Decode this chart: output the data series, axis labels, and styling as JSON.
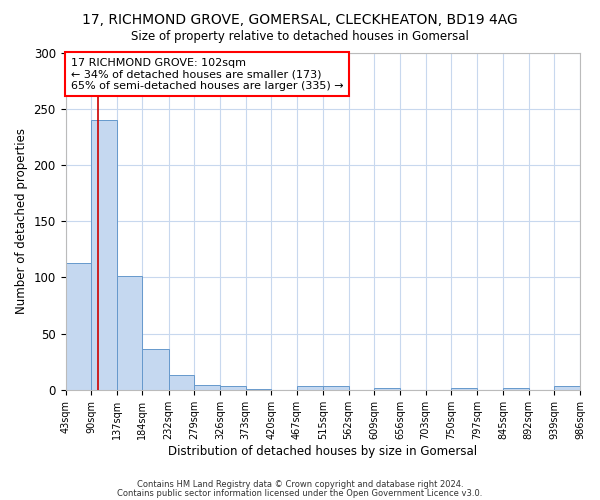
{
  "title1": "17, RICHMOND GROVE, GOMERSAL, CLECKHEATON, BD19 4AG",
  "title2": "Size of property relative to detached houses in Gomersal",
  "xlabel": "Distribution of detached houses by size in Gomersal",
  "ylabel": "Number of detached properties",
  "annotation_line1": "17 RICHMOND GROVE: 102sqm",
  "annotation_line2": "← 34% of detached houses are smaller (173)",
  "annotation_line3": "65% of semi-detached houses are larger (335) →",
  "footer1": "Contains HM Land Registry data © Crown copyright and database right 2024.",
  "footer2": "Contains public sector information licensed under the Open Government Licence v3.0.",
  "red_line_x": 102,
  "bin_edges": [
    43,
    90,
    137,
    184,
    232,
    279,
    326,
    373,
    420,
    467,
    515,
    562,
    609,
    656,
    703,
    750,
    797,
    845,
    892,
    939,
    986
  ],
  "bar_heights": [
    113,
    240,
    101,
    36,
    13,
    4,
    3,
    1,
    0,
    3,
    3,
    0,
    2,
    0,
    0,
    2,
    0,
    2,
    0,
    3
  ],
  "bar_color": "#c5d8f0",
  "bar_edge_color": "#6699cc",
  "red_line_color": "#cc0000",
  "grid_color": "#c8d8ee",
  "background_color": "#ffffff",
  "ylim": [
    0,
    300
  ],
  "yticks": [
    0,
    50,
    100,
    150,
    200,
    250,
    300
  ]
}
